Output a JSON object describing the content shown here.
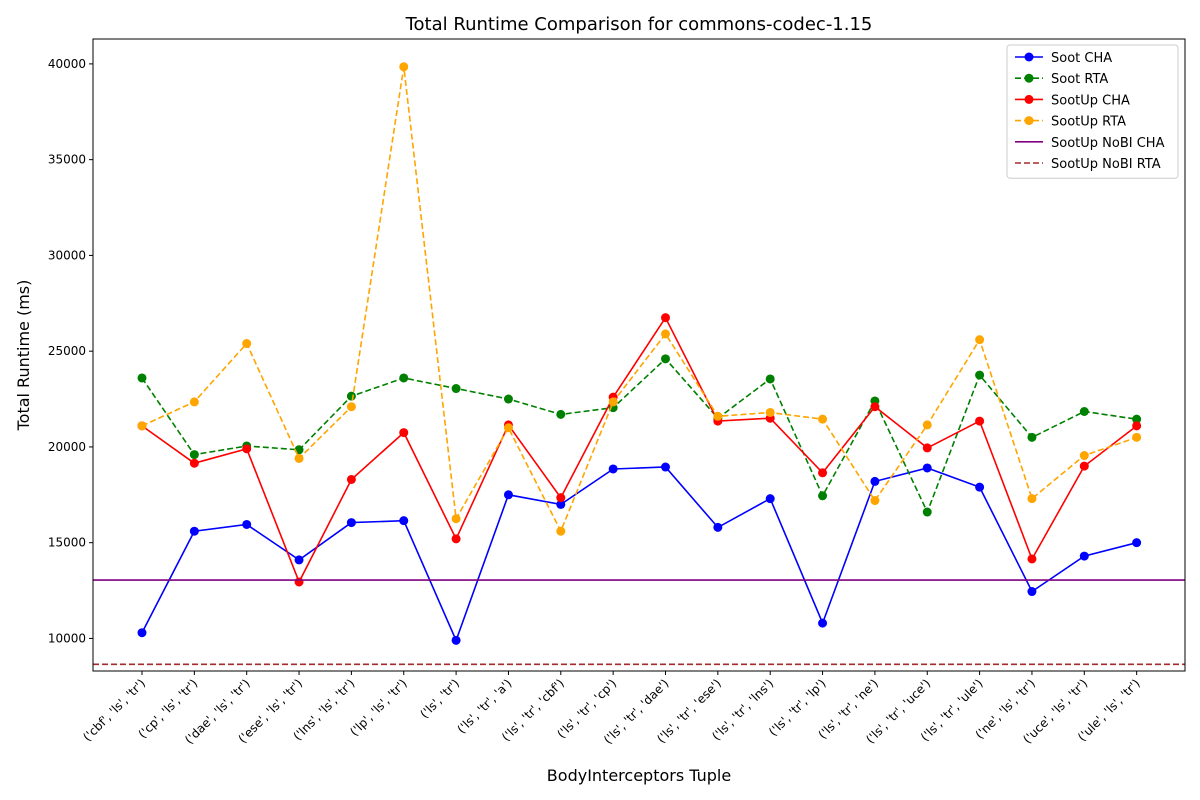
{
  "chart_data": {
    "type": "line",
    "title": "Total Runtime Comparison for commons-codec-1.15",
    "xlabel": "BodyInterceptors Tuple",
    "ylabel": "Total Runtime (ms)",
    "ylim": [
      8300,
      41300
    ],
    "yticks": [
      10000,
      15000,
      20000,
      25000,
      30000,
      35000,
      40000
    ],
    "grid": false,
    "legend_position": "top-right",
    "categories": [
      "('cbf', 'ls', 'tr')",
      "('cp', 'ls', 'tr')",
      "('dae', 'ls', 'tr')",
      "('ese', 'ls', 'tr')",
      "('lns', 'ls', 'tr')",
      "('lp', 'ls', 'tr')",
      "('ls', 'tr')",
      "('ls', 'tr', 'a')",
      "('ls', 'tr', 'cbf')",
      "('ls', 'tr', 'cp')",
      "('ls', 'tr', 'dae')",
      "('ls', 'tr', 'ese')",
      "('ls', 'tr', 'lns')",
      "('ls', 'tr', 'lp')",
      "('ls', 'tr', 'ne')",
      "('ls', 'tr', 'uce')",
      "('ls', 'tr', 'ule')",
      "('ne', 'ls', 'tr')",
      "('uce', 'ls', 'tr')",
      "('ule', 'ls', 'tr')"
    ],
    "series": [
      {
        "name": "Soot CHA",
        "color": "#0000ff",
        "style": "solid",
        "marker": true,
        "values": [
          10300,
          15600,
          15950,
          14100,
          16050,
          16150,
          9900,
          17500,
          17000,
          18850,
          18950,
          15800,
          17300,
          10800,
          18200,
          18900,
          17900,
          12450,
          14300,
          15000
        ]
      },
      {
        "name": "Soot RTA",
        "color": "#008000",
        "style": "dashed",
        "marker": true,
        "values": [
          23600,
          19600,
          20050,
          19850,
          22650,
          23600,
          23050,
          22500,
          21700,
          22050,
          24600,
          21500,
          23550,
          17450,
          22400,
          16600,
          23750,
          20500,
          21850,
          21450
        ]
      },
      {
        "name": "SootUp CHA",
        "color": "#ff0000",
        "style": "solid",
        "marker": true,
        "values": [
          21100,
          19150,
          19900,
          12950,
          18300,
          20750,
          15200,
          21150,
          17350,
          22600,
          26750,
          21350,
          21500,
          18650,
          22100,
          19950,
          21350,
          14150,
          19000,
          21100
        ]
      },
      {
        "name": "SootUp RTA",
        "color": "#ffa500",
        "style": "dashed",
        "marker": true,
        "values": [
          21100,
          22350,
          25400,
          19400,
          22100,
          39850,
          16250,
          21000,
          15600,
          22350,
          25900,
          21600,
          21800,
          21450,
          17200,
          21150,
          25600,
          17300,
          19550,
          20500
        ]
      },
      {
        "name": "SootUp NoBI CHA",
        "color": "#800080",
        "style": "solid",
        "marker": false,
        "constant": 13050
      },
      {
        "name": "SootUp NoBI RTA",
        "color": "#a52a2a",
        "style": "dashed",
        "marker": false,
        "constant": 8650
      }
    ]
  }
}
